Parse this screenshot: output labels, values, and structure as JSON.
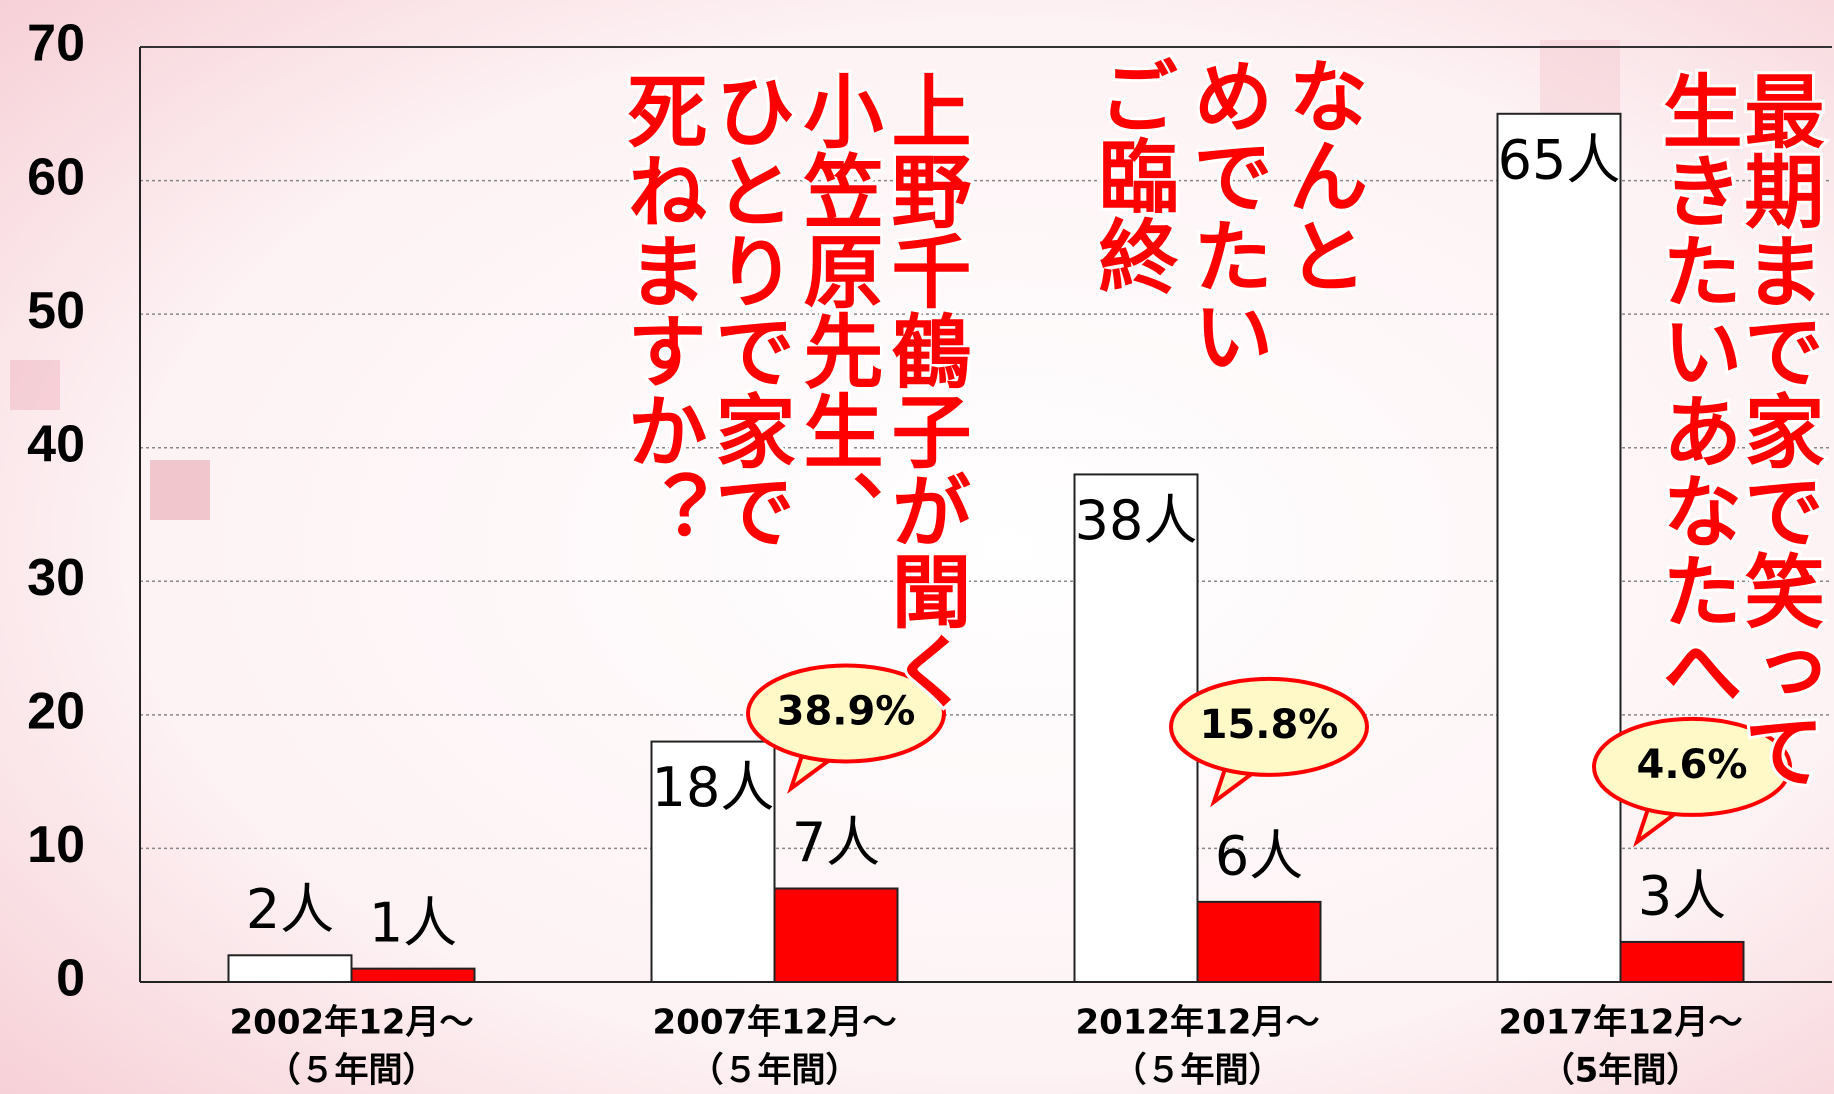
{
  "chart_data": {
    "type": "bar",
    "categories": [
      "2002年12月～",
      "2007年12月～",
      "2012年12月～",
      "2017年12月～"
    ],
    "category_notes": [
      "（５年間）",
      "（５年間）",
      "（５年間）",
      "（5年間）"
    ],
    "series": [
      {
        "color": "#ffffff",
        "values": [
          2,
          18,
          38,
          65
        ],
        "value_labels": [
          "2人",
          "18人",
          "38人",
          "65人"
        ]
      },
      {
        "color": "#ff0000",
        "values": [
          1,
          7,
          6,
          3
        ],
        "value_labels": [
          "1人",
          "7人",
          "6人",
          "3人"
        ],
        "ratio_labels": [
          null,
          "38.9%",
          "15.8%",
          "4.6%"
        ]
      }
    ],
    "ylim": [
      0,
      70
    ],
    "yticks": [
      0,
      10,
      20,
      30,
      40,
      50,
      60,
      70
    ],
    "grid": true,
    "annotations": [
      {
        "lines": [
          "上野千鶴子が聞く",
          "小笠原先生、",
          "ひとりで家で",
          "死ねますか？"
        ]
      },
      {
        "lines": [
          "なんと",
          "めでたい",
          "ご臨終"
        ]
      },
      {
        "lines": [
          "最期まで家で笑って",
          "生きたいあなたへ"
        ]
      }
    ]
  }
}
